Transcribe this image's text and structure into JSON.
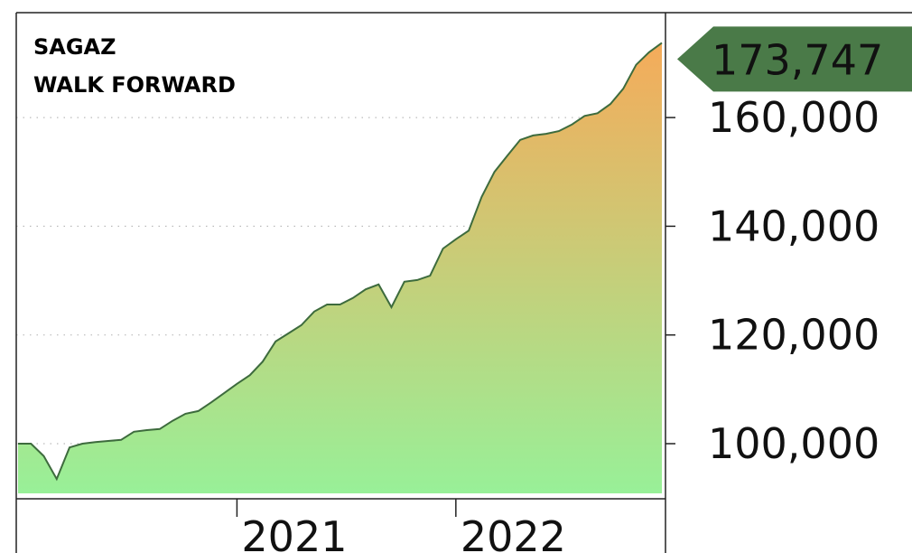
{
  "chart_data": {
    "type": "area",
    "title": [
      "SAGAZ",
      "WALK FORWARD"
    ],
    "categories": [
      null,
      null,
      null,
      null,
      null,
      null,
      null,
      null,
      null,
      null,
      null,
      null,
      null,
      null,
      null,
      null,
      null,
      "2021",
      null,
      null,
      null,
      null,
      null,
      null,
      null,
      null,
      null,
      null,
      null,
      null,
      null,
      null,
      null,
      null,
      "2022",
      null,
      null,
      null,
      null,
      null,
      null,
      null,
      null,
      null,
      null,
      null,
      null,
      null,
      null,
      null,
      null
    ],
    "series": [
      {
        "name": null,
        "color": "#3d6b3d",
        "fill_gradient": [
          "#f5ab5a",
          "#98f098"
        ],
        "values": [
          100000,
          100000,
          97700,
          93500,
          99300,
          100000,
          100300,
          100500,
          100700,
          102200,
          102500,
          102700,
          104200,
          105500,
          106000,
          107600,
          109300,
          111000,
          112600,
          115100,
          118800,
          120300,
          121800,
          124300,
          125600,
          125600,
          126800,
          128400,
          129300,
          125100,
          129800,
          130100,
          130900,
          135900,
          137600,
          139200,
          145400,
          150000,
          153000,
          155900,
          156700,
          157000,
          157500,
          158700,
          160300,
          160800,
          162500,
          165300,
          169700,
          172000,
          173747
        ],
        "value_labels": [
          null,
          null,
          null,
          null,
          null,
          null,
          null,
          null,
          null,
          null,
          null,
          null,
          null,
          null,
          null,
          null,
          null,
          null,
          null,
          null,
          null,
          null,
          null,
          null,
          null,
          null,
          null,
          null,
          null,
          null,
          null,
          null,
          null,
          null,
          null,
          null,
          null,
          null,
          null,
          null,
          null,
          null,
          null,
          null,
          null,
          null,
          null,
          null,
          null,
          null,
          "173,747"
        ],
        "label_color": "#4a7a48"
      }
    ],
    "ylim": [
      89860,
      179300
    ],
    "yticks": [
      {
        "value": 100000,
        "label": "100,000"
      },
      {
        "value": 120000,
        "label": "120,000"
      },
      {
        "value": 140000,
        "label": "140,000"
      },
      {
        "value": 160000,
        "label": "160,000"
      }
    ],
    "grid": true
  }
}
